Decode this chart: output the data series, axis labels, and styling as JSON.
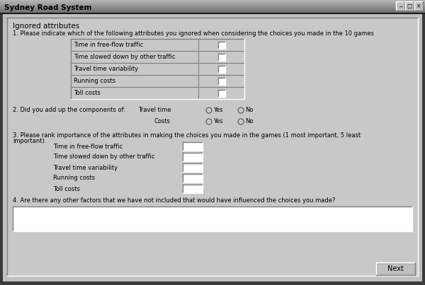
{
  "title_bar": "Sydney Road System",
  "title_bar_bg": "#a0a0a0",
  "title_bar_text_color": "#000000",
  "outer_bg": "#3a3a3a",
  "window_bg": "#c0c0c0",
  "inner_bg": "#c8c8c8",
  "white": "#ffffff",
  "section_title": "Ignored attributes",
  "q1_text_a": "1. Please indicate which of the following attributes you ignored when considering the choices you made in the 10 games",
  "q1_attributes": [
    "Time in free-flow traffic",
    "Time slowed down by other traffic",
    "Travel time variability",
    "Running costs",
    "Toll costs"
  ],
  "q2_text": "2. Did you add up the components of:",
  "q2_item1": "Travel time",
  "q2_item2": "Costs",
  "q3_line1": "3. Please rank importance of the attributes in making the choices you made in the games (1 most important, 5 least",
  "q3_line2": "important).",
  "q3_attributes": [
    "Time in free-flow traffic",
    "Time slowed down by other traffic",
    "Travel time variability",
    "Running costs",
    "Toll costs"
  ],
  "q4_text": "4. Are there any other factors that we have not included that would have influenced the choices you made?",
  "next_btn": "Next",
  "yes_label": "Yes",
  "no_label": "No"
}
